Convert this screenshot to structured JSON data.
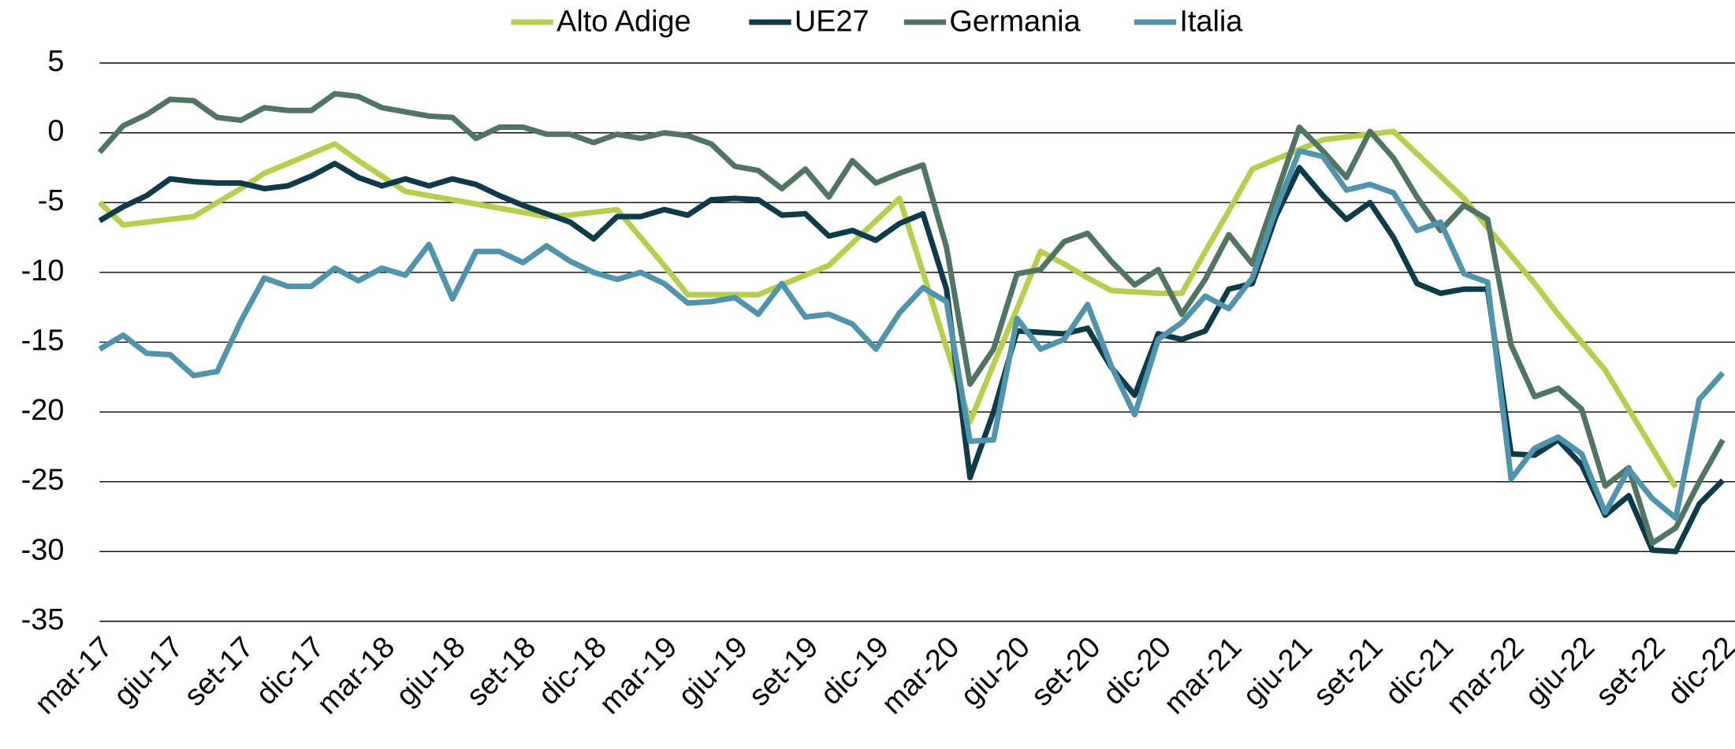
{
  "chart_data": {
    "type": "line",
    "categories": [
      "mar-17",
      null,
      null,
      "giu-17",
      null,
      null,
      "set-17",
      null,
      null,
      "dic-17",
      null,
      null,
      "mar-18",
      null,
      null,
      "giu-18",
      null,
      null,
      "set-18",
      null,
      null,
      "dic-18",
      null,
      null,
      "mar-19",
      null,
      null,
      "giu-19",
      null,
      null,
      "set-19",
      null,
      null,
      "dic-19",
      null,
      null,
      "mar-20",
      null,
      null,
      "giu-20",
      null,
      null,
      "set-20",
      null,
      null,
      "dic-20",
      null,
      null,
      "mar-21",
      null,
      null,
      "giu-21",
      null,
      null,
      "set-21",
      null,
      null,
      "dic-21",
      null,
      null,
      "mar-22",
      null,
      null,
      "giu-22",
      null,
      null,
      "set-22",
      null,
      null,
      "dic-22"
    ],
    "series": [
      {
        "name": "Alto Adige",
        "color": "#b5cf4a",
        "values": [
          -5.0,
          -6.6,
          -6.4,
          -6.2,
          -6.0,
          -5.0,
          -4.0,
          -2.9,
          -2.2,
          -1.5,
          -0.8,
          -2.0,
          -3.1,
          -4.2,
          -4.5,
          -4.8,
          -5.1,
          -5.4,
          -5.7,
          -6.0,
          -5.9,
          -5.7,
          -5.5,
          -7.5,
          -9.5,
          -11.6,
          -11.6,
          -11.6,
          -11.6,
          -10.9,
          -10.2,
          -9.5,
          -7.9,
          -6.3,
          -4.7,
          -10.0,
          -15.4,
          -20.7,
          -16.6,
          -12.6,
          -8.5,
          -9.4,
          -10.4,
          -11.3,
          -11.4,
          -11.5,
          -11.5,
          -8.5,
          -5.6,
          -2.6,
          -1.9,
          -1.2,
          -0.5,
          -0.3,
          -0.1,
          0.1,
          -1.5,
          -3.1,
          -4.7,
          -6.8,
          -8.8,
          -10.8,
          -13.0,
          -15.0,
          -17.0,
          -19.8,
          -22.6,
          -25.4,
          null,
          null
        ]
      },
      {
        "name": "UE27",
        "color": "#0d3b4a",
        "values": [
          -6.3,
          -5.3,
          -4.5,
          -3.3,
          -3.5,
          -3.6,
          -3.6,
          -4.0,
          -3.8,
          -3.1,
          -2.2,
          -3.2,
          -3.8,
          -3.3,
          -3.8,
          -3.3,
          -3.7,
          -4.5,
          -5.2,
          -5.8,
          -6.4,
          -7.6,
          -6.0,
          -6.0,
          -5.5,
          -5.9,
          -4.8,
          -4.7,
          -4.8,
          -5.9,
          -5.8,
          -7.4,
          -7.0,
          -7.7,
          -6.5,
          -5.8,
          -11.2,
          -24.7,
          -20.0,
          -14.2,
          -14.3,
          -14.4,
          -14.0,
          -16.8,
          -18.8,
          -14.4,
          -14.8,
          -14.2,
          -11.2,
          -10.8,
          -6.0,
          -2.5,
          -4.5,
          -6.2,
          -5.0,
          -7.5,
          -10.8,
          -11.5,
          -11.2,
          -11.2,
          -23.0,
          -23.1,
          -22.0,
          -23.8,
          -27.4,
          -26.0,
          -29.9,
          -30.0,
          -26.6,
          -24.9
        ]
      },
      {
        "name": "Germania",
        "color": "#517563",
        "values": [
          -1.4,
          0.5,
          1.3,
          2.4,
          2.3,
          1.1,
          0.9,
          1.8,
          1.6,
          1.6,
          2.8,
          2.6,
          1.8,
          1.5,
          1.2,
          1.1,
          -0.4,
          0.4,
          0.4,
          -0.1,
          -0.1,
          -0.7,
          -0.1,
          -0.4,
          0.0,
          -0.2,
          -0.8,
          -2.4,
          -2.7,
          -4.0,
          -2.6,
          -4.6,
          -2.0,
          -3.6,
          -2.9,
          -2.3,
          -8.2,
          -18.0,
          -15.5,
          -10.1,
          -9.8,
          -7.8,
          -7.2,
          -9.2,
          -10.9,
          -9.8,
          -13.0,
          -10.5,
          -7.3,
          -9.4,
          -4.5,
          0.4,
          -1.3,
          -3.2,
          0.1,
          -1.8,
          -4.6,
          -7.0,
          -5.2,
          -6.2,
          -15.2,
          -18.9,
          -18.3,
          -19.8,
          -25.3,
          -24.0,
          -29.4,
          -28.3,
          -25.0,
          -22.0
        ]
      },
      {
        "name": "Italia",
        "color": "#4f94ad",
        "values": [
          -15.5,
          -14.5,
          -15.8,
          -15.9,
          -17.4,
          -17.1,
          -13.5,
          -10.4,
          -11.0,
          -11.0,
          -9.7,
          -10.6,
          -9.7,
          -10.2,
          -8.0,
          -11.9,
          -8.5,
          -8.5,
          -9.3,
          -8.1,
          -9.2,
          -10.0,
          -10.5,
          -10.0,
          -10.8,
          -12.2,
          -12.1,
          -11.8,
          -13.0,
          -10.8,
          -13.2,
          -13.0,
          -13.7,
          -15.5,
          -12.9,
          -11.1,
          -12.1,
          -22.1,
          -22.0,
          -13.3,
          -15.5,
          -14.8,
          -12.3,
          -16.7,
          -20.2,
          -14.8,
          -13.6,
          -11.7,
          -12.6,
          -10.4,
          -5.5,
          -1.3,
          -1.7,
          -4.1,
          -3.7,
          -4.3,
          -7.0,
          -6.4,
          -10.1,
          -10.7,
          -24.8,
          -22.6,
          -21.8,
          -23.0,
          -27.2,
          -24.1,
          -26.2,
          -27.6,
          -19.1,
          -17.2
        ]
      }
    ],
    "ylim": [
      -35,
      5
    ],
    "yticks": [
      5,
      0,
      -5,
      -10,
      -15,
      -20,
      -25,
      -30,
      -35
    ],
    "grid": true,
    "legend": "top"
  }
}
